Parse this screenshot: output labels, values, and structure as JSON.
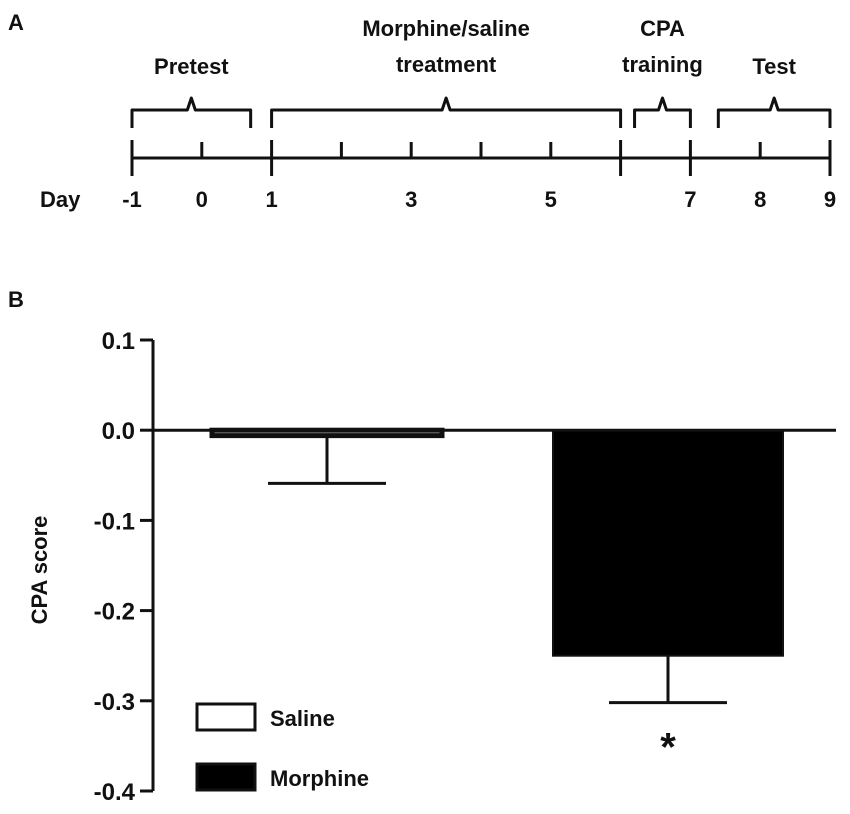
{
  "panel_a": {
    "letter": "A",
    "day_label": "Day",
    "phases": [
      {
        "lines": [
          "Pretest"
        ],
        "from": -1,
        "to": 0.7
      },
      {
        "lines": [
          "Morphine/saline",
          "treatment"
        ],
        "from": 1,
        "to": 6
      },
      {
        "lines": [
          "CPA",
          "training"
        ],
        "from": 6.2,
        "to": 7
      },
      {
        "lines": [
          "Test"
        ],
        "from": 7.4,
        "to": 9
      }
    ],
    "day_ticks": [
      -1,
      0,
      1,
      2,
      3,
      4,
      5,
      6,
      7,
      8,
      9
    ],
    "major_ticks": [
      -1,
      1,
      6,
      7,
      9
    ],
    "day_labels": [
      {
        "day": -1,
        "text": "-1"
      },
      {
        "day": 0,
        "text": "0"
      },
      {
        "day": 1,
        "text": "1"
      },
      {
        "day": 3,
        "text": "3"
      },
      {
        "day": 5,
        "text": "5"
      },
      {
        "day": 7,
        "text": "7"
      },
      {
        "day": 8,
        "text": "8"
      },
      {
        "day": 9,
        "text": "9"
      }
    ]
  },
  "panel_b": {
    "letter": "B"
  },
  "chart_data": {
    "type": "bar",
    "categories": [
      "Saline",
      "Morphine"
    ],
    "values": [
      -0.006,
      -0.25
    ],
    "errors": [
      0.053,
      0.052
    ],
    "colors": [
      "#ffffff",
      "#000000"
    ],
    "ylabel": "CPA score",
    "xlabel": "",
    "ylim": [
      -0.4,
      0.1
    ],
    "yticks": [
      0.1,
      0.0,
      -0.1,
      -0.2,
      -0.3,
      -0.4
    ],
    "ytick_labels": [
      "0.1",
      "0.0",
      "-0.1",
      "-0.2",
      "-0.3",
      "-0.4"
    ],
    "annotations": [
      {
        "category": "Morphine",
        "text": "*"
      }
    ],
    "legend": {
      "position": "bottom-left",
      "entries": [
        {
          "label": "Saline",
          "color": "#ffffff"
        },
        {
          "label": "Morphine",
          "color": "#000000"
        }
      ]
    },
    "grid": false
  }
}
